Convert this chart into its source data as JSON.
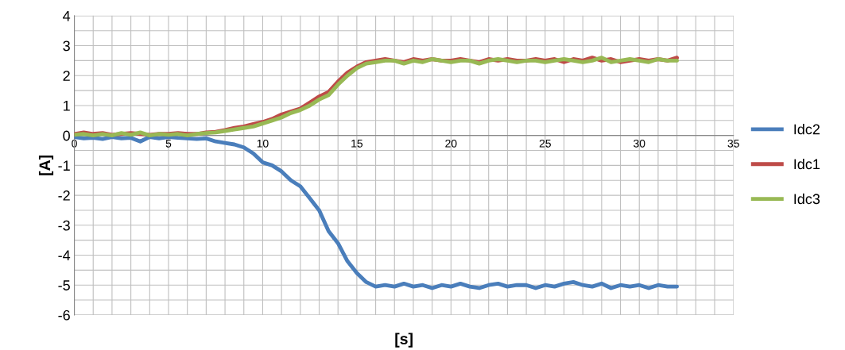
{
  "chart_data": {
    "type": "line",
    "xlabel": "[s]",
    "ylabel": "[A]",
    "xlim": [
      0,
      35
    ],
    "ylim": [
      -6,
      4
    ],
    "xticks": [
      0,
      {
        "value": 1,
        "label": null
      },
      {
        "value": 2,
        "label": null
      },
      {
        "value": 3,
        "label": null
      },
      {
        "value": 4,
        "label": null
      },
      5,
      {
        "value": 6,
        "label": null
      },
      {
        "value": 7,
        "label": null
      },
      {
        "value": 8,
        "label": null
      },
      {
        "value": 9,
        "label": null
      },
      10,
      {
        "value": 11,
        "label": null
      },
      {
        "value": 12,
        "label": null
      },
      {
        "value": 13,
        "label": null
      },
      {
        "value": 14,
        "label": null
      },
      15,
      {
        "value": 16,
        "label": null
      },
      {
        "value": 17,
        "label": null
      },
      {
        "value": 18,
        "label": null
      },
      {
        "value": 19,
        "label": null
      },
      20,
      {
        "value": 21,
        "label": null
      },
      {
        "value": 22,
        "label": null
      },
      {
        "value": 23,
        "label": null
      },
      {
        "value": 24,
        "label": null
      },
      25,
      {
        "value": 26,
        "label": null
      },
      {
        "value": 27,
        "label": null
      },
      {
        "value": 28,
        "label": null
      },
      {
        "value": 29,
        "label": null
      },
      30,
      {
        "value": 31,
        "label": null
      },
      {
        "value": 32,
        "label": null
      },
      {
        "value": 33,
        "label": null
      },
      {
        "value": 34,
        "label": null
      },
      35
    ],
    "yticks": [
      -6,
      {
        "value": -5.5,
        "label": null
      },
      -5,
      {
        "value": -4.5,
        "label": null
      },
      -4,
      {
        "value": -3.5,
        "label": null
      },
      -3,
      {
        "value": -2.5,
        "label": null
      },
      -2,
      {
        "value": -1.5,
        "label": null
      },
      -1,
      {
        "value": -0.5,
        "label": null
      },
      0,
      {
        "value": 0.5,
        "label": null
      },
      1,
      {
        "value": 1.5,
        "label": null
      },
      2,
      {
        "value": 2.5,
        "label": null
      },
      3,
      {
        "value": 3.5,
        "label": null
      },
      4
    ],
    "x": [
      0,
      0.5,
      1,
      1.5,
      2,
      2.5,
      3,
      3.5,
      4,
      4.5,
      5,
      5.5,
      6,
      6.5,
      7,
      7.5,
      8,
      8.5,
      9,
      9.5,
      10,
      10.5,
      11,
      11.5,
      12,
      12.5,
      13,
      13.5,
      14,
      14.5,
      15,
      15.5,
      16,
      16.5,
      17,
      17.5,
      18,
      18.5,
      19,
      19.5,
      20,
      20.5,
      21,
      21.5,
      22,
      22.5,
      23,
      23.5,
      24,
      24.5,
      25,
      25.5,
      26,
      26.5,
      27,
      27.5,
      28,
      28.5,
      29,
      29.5,
      30,
      30.5,
      31,
      31.5,
      32
    ],
    "grid": true,
    "legend": "right",
    "marker": "none",
    "line_style": "solid",
    "series": [
      {
        "name": "Idc2",
        "color": "#4a7ebb",
        "values": [
          -0.05,
          -0.1,
          -0.08,
          -0.12,
          -0.05,
          -0.1,
          -0.08,
          -0.2,
          -0.05,
          -0.1,
          -0.05,
          -0.08,
          -0.1,
          -0.12,
          -0.1,
          -0.2,
          -0.25,
          -0.3,
          -0.4,
          -0.6,
          -0.9,
          -1.0,
          -1.2,
          -1.5,
          -1.7,
          -2.1,
          -2.5,
          -3.2,
          -3.6,
          -4.2,
          -4.6,
          -4.9,
          -5.05,
          -5.0,
          -5.05,
          -4.95,
          -5.05,
          -5.0,
          -5.1,
          -5.0,
          -5.05,
          -4.95,
          -5.05,
          -5.1,
          -5.0,
          -4.95,
          -5.05,
          -5.0,
          -5.0,
          -5.1,
          -5.0,
          -5.05,
          -4.95,
          -4.9,
          -5.0,
          -5.05,
          -4.95,
          -5.1,
          -5.0,
          -5.05,
          -5.0,
          -5.1,
          -5.0,
          -5.05,
          -5.05
        ]
      },
      {
        "name": "Idc1",
        "color": "#be4b48",
        "values": [
          0.05,
          0.1,
          0.05,
          0.08,
          0.02,
          0.05,
          0.08,
          0.05,
          0.02,
          0.05,
          0.05,
          0.08,
          0.05,
          0.05,
          0.1,
          0.12,
          0.18,
          0.25,
          0.3,
          0.38,
          0.45,
          0.55,
          0.7,
          0.8,
          0.9,
          1.1,
          1.3,
          1.45,
          1.8,
          2.1,
          2.3,
          2.45,
          2.5,
          2.55,
          2.5,
          2.45,
          2.55,
          2.5,
          2.55,
          2.5,
          2.5,
          2.55,
          2.5,
          2.45,
          2.55,
          2.5,
          2.55,
          2.5,
          2.5,
          2.55,
          2.5,
          2.55,
          2.45,
          2.55,
          2.5,
          2.6,
          2.5,
          2.55,
          2.45,
          2.5,
          2.55,
          2.5,
          2.55,
          2.5,
          2.6
        ]
      },
      {
        "name": "Idc3",
        "color": "#98b954",
        "values": [
          0.02,
          0.05,
          0.0,
          0.05,
          0.0,
          0.08,
          0.02,
          0.1,
          0.0,
          0.05,
          0.02,
          0.05,
          0.0,
          0.05,
          0.08,
          0.1,
          0.15,
          0.2,
          0.25,
          0.3,
          0.4,
          0.5,
          0.6,
          0.75,
          0.85,
          1.0,
          1.2,
          1.35,
          1.7,
          2.0,
          2.25,
          2.4,
          2.45,
          2.5,
          2.5,
          2.4,
          2.5,
          2.45,
          2.55,
          2.5,
          2.45,
          2.5,
          2.5,
          2.4,
          2.5,
          2.55,
          2.5,
          2.45,
          2.5,
          2.5,
          2.45,
          2.5,
          2.55,
          2.5,
          2.45,
          2.5,
          2.6,
          2.45,
          2.5,
          2.55,
          2.5,
          2.45,
          2.55,
          2.5,
          2.5
        ]
      }
    ]
  }
}
